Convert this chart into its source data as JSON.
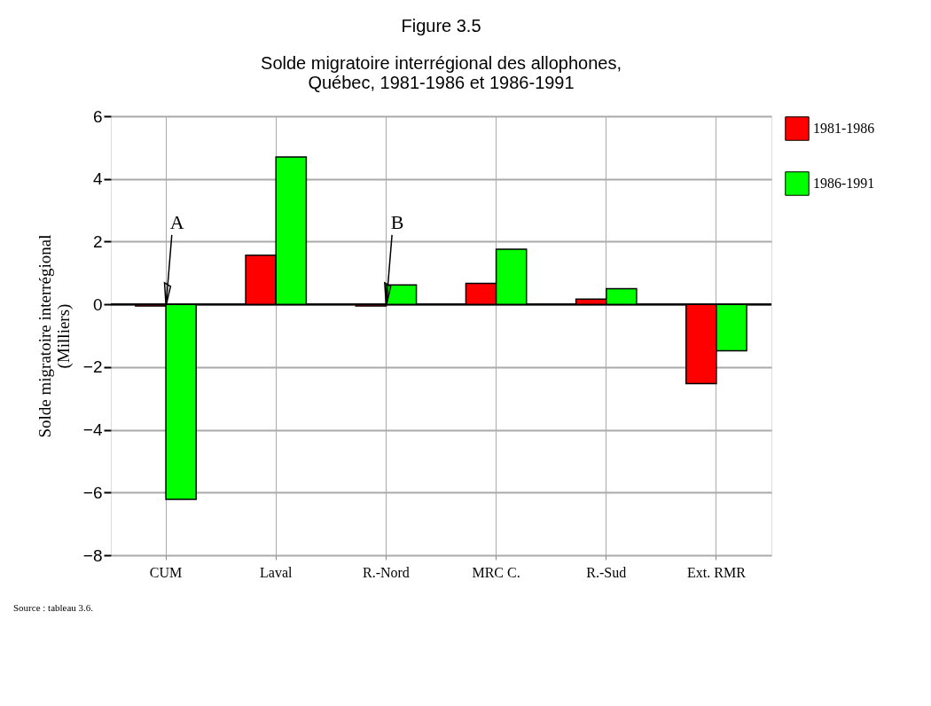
{
  "chart_data": {
    "type": "bar",
    "title": "Figure 3.5",
    "subtitle": "Solde migratoire interrégional des allophones,\nQuébec, 1981-1986 et 1986-1991",
    "ylabel": "Solde migratoire interrégional\n(Milliers)",
    "categories": [
      "CUM",
      "Laval",
      "R.-Nord",
      "MRC C.",
      "R.-Sud",
      "Ext. RMR"
    ],
    "series": [
      {
        "name": "1981-1986",
        "color": "#ff0000",
        "values": [
          -0.05,
          1.57,
          -0.05,
          0.67,
          0.17,
          -2.53
        ]
      },
      {
        "name": "1986-1991",
        "color": "#00ff00",
        "values": [
          -6.22,
          4.7,
          0.62,
          1.76,
          0.5,
          -1.48
        ]
      }
    ],
    "ylim": [
      -8,
      6
    ],
    "yticks": [
      -8,
      -6,
      -4,
      -2,
      0,
      2,
      4,
      6
    ],
    "grid": true,
    "legend": "right",
    "ref_lines": [
      {
        "axis": "y",
        "value": 0
      }
    ],
    "annotations": [
      {
        "text": "A",
        "x": "CUM",
        "y": -0.05
      },
      {
        "text": "B",
        "x": "R.-Nord",
        "y": -0.05
      },
      "Source : tableau 3.6."
    ]
  }
}
